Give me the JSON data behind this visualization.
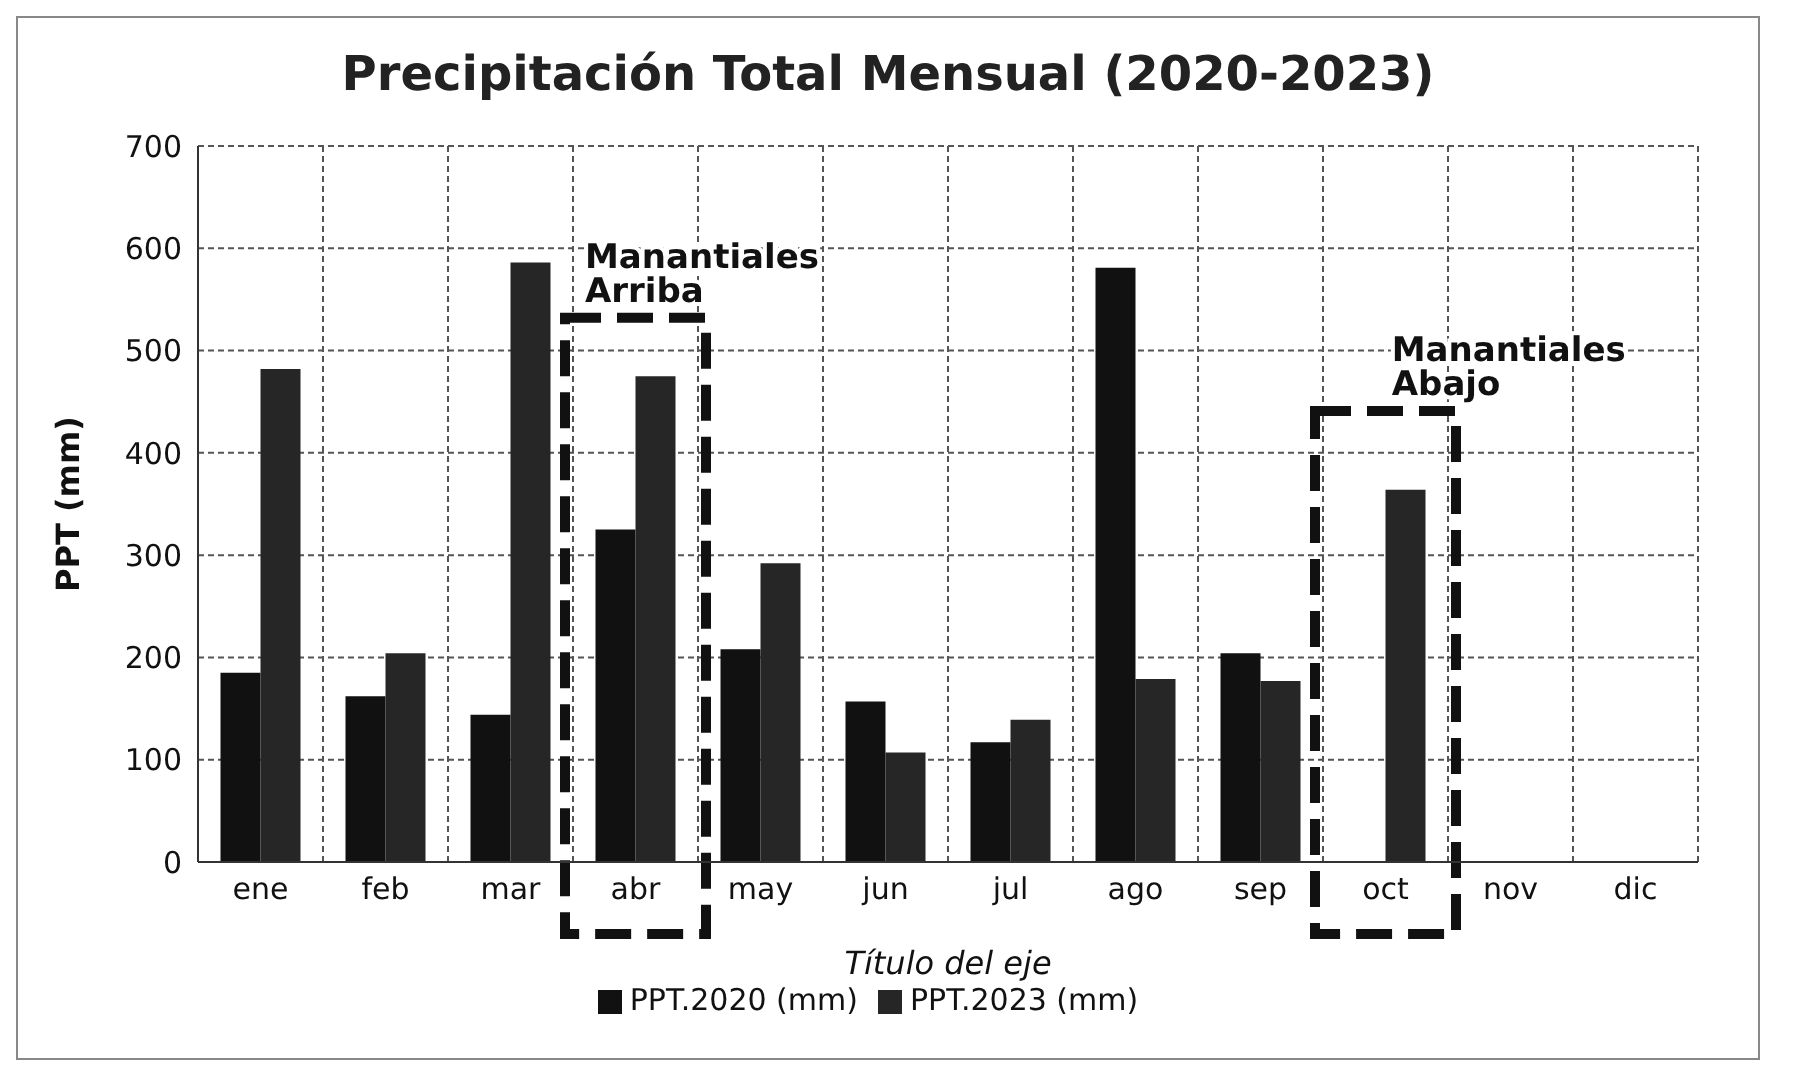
{
  "chart_data": {
    "type": "bar",
    "title": "Precipitación Total Mensual (2020-2023)",
    "xlabel": "Título del eje",
    "ylabel": "PPT (mm)",
    "categories": [
      "ene",
      "feb",
      "mar",
      "abr",
      "may",
      "jun",
      "jul",
      "ago",
      "sep",
      "oct",
      "nov",
      "dic"
    ],
    "series": [
      {
        "name": "PPT.2020 (mm)",
        "color": "#111111",
        "values": [
          185,
          162,
          144,
          325,
          208,
          157,
          117,
          581,
          204,
          null,
          null,
          null
        ]
      },
      {
        "name": "PPT.2023 (mm)",
        "color": "#262626",
        "values": [
          482,
          204,
          586,
          475,
          292,
          107,
          139,
          179,
          177,
          364,
          null,
          null
        ]
      }
    ],
    "ylim": [
      0,
      700
    ],
    "yticks": [
      0,
      100,
      200,
      300,
      400,
      500,
      600,
      700
    ],
    "grid": true,
    "legend": "bottom",
    "annotations": [
      "Manantiales Arriba",
      "Manantiales Abajo"
    ]
  }
}
